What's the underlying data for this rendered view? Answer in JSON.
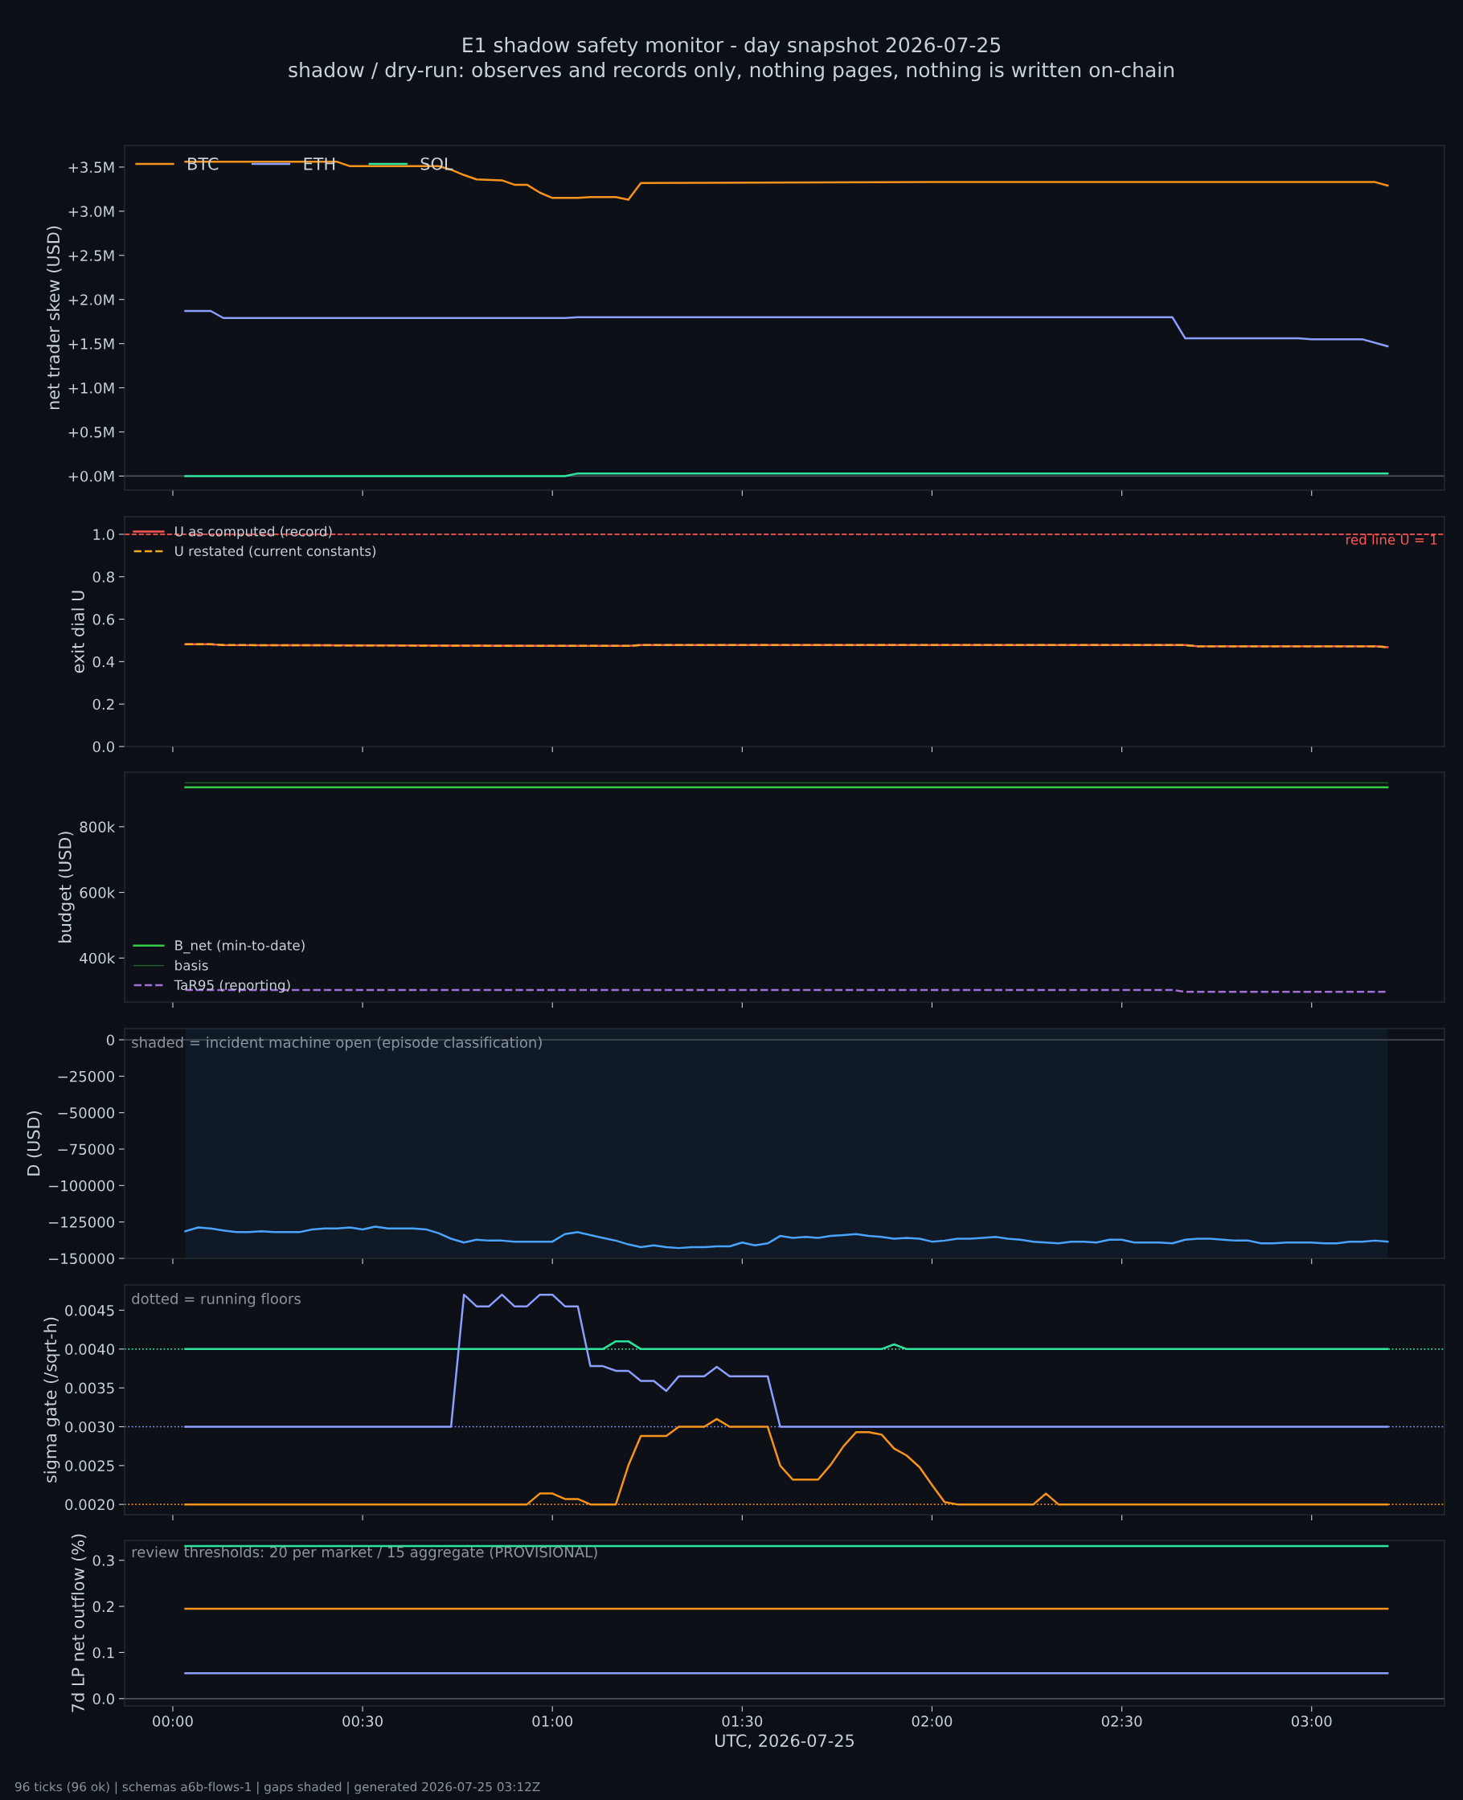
{
  "chart_data": [
    {
      "type": "line",
      "title": "E1 shadow safety monitor - day snapshot 2026-07-25",
      "subtitle": "shadow / dry-run: observes and records only, nothing pages, nothing is written on-chain",
      "ylabel": "net trader skew (USD)",
      "xlim": [
        -0.127,
        3.35
      ],
      "xticks": [
        {
          "value": 0,
          "label": null
        },
        {
          "value": 0.5,
          "label": null
        },
        {
          "value": 1,
          "label": null
        },
        {
          "value": 1.5,
          "label": null
        },
        {
          "value": 2,
          "label": null
        },
        {
          "value": 2.5,
          "label": null
        },
        {
          "value": 3,
          "label": null
        }
      ],
      "ylim": [
        -160000,
        3745000
      ],
      "yticks": [
        {
          "value": 0,
          "label": "+0.0M"
        },
        {
          "value": 500000,
          "label": "+0.5M"
        },
        {
          "value": 1000000,
          "label": "+1.0M"
        },
        {
          "value": 1500000,
          "label": "+1.5M"
        },
        {
          "value": 2000000,
          "label": "+2.0M"
        },
        {
          "value": 2500000,
          "label": "+2.5M"
        },
        {
          "value": 3000000,
          "label": "+3.0M"
        },
        {
          "value": 3500000,
          "label": "+3.5M"
        }
      ],
      "tick_labels": "y",
      "legend": "top left",
      "grid": false,
      "ref_lines": [
        {
          "axis": "y",
          "value": 0,
          "color": "#4a4f57"
        }
      ],
      "series": [
        {
          "name": "BTC",
          "color": "#f7931a",
          "x": [
            0.033,
            0.433,
            0.467,
            0.7,
            0.733,
            0.767,
            0.8,
            0.867,
            0.9,
            0.933,
            0.967,
            1.0,
            1.067,
            1.1,
            1.167,
            1.2,
            1.233,
            2.0,
            3.167,
            3.2
          ],
          "values": [
            3560000,
            3560000,
            3510000,
            3510000,
            3470000,
            3410000,
            3360000,
            3350000,
            3300000,
            3300000,
            3210000,
            3150000,
            3150000,
            3160000,
            3160000,
            3130000,
            3320000,
            3330000,
            3330000,
            3290000
          ]
        },
        {
          "name": "ETH",
          "color": "#8c9eff",
          "x": [
            0.033,
            0.1,
            0.133,
            1.033,
            1.067,
            2.633,
            2.667,
            2.967,
            3.0,
            3.133,
            3.2
          ],
          "values": [
            1870000,
            1870000,
            1790000,
            1790000,
            1800000,
            1800000,
            1560000,
            1560000,
            1550000,
            1550000,
            1470000
          ]
        },
        {
          "name": "SOL",
          "color": "#2ee59d",
          "x": [
            0.033,
            1.033,
            1.067,
            3.2
          ],
          "values": [
            0,
            0,
            30000,
            30000
          ]
        }
      ]
    },
    {
      "type": "line",
      "ylabel": "exit dial U",
      "xlim": [
        -0.127,
        3.35
      ],
      "xticks": [
        {
          "value": 0,
          "label": null
        },
        {
          "value": 0.5,
          "label": null
        },
        {
          "value": 1,
          "label": null
        },
        {
          "value": 1.5,
          "label": null
        },
        {
          "value": 2,
          "label": null
        },
        {
          "value": 2.5,
          "label": null
        },
        {
          "value": 3,
          "label": null
        }
      ],
      "ylim": [
        0,
        1.083
      ],
      "yticks": [
        {
          "value": 0,
          "label": "0.0"
        },
        {
          "value": 0.2,
          "label": "0.2"
        },
        {
          "value": 0.4,
          "label": "0.4"
        },
        {
          "value": 0.6,
          "label": "0.6"
        },
        {
          "value": 0.8,
          "label": "0.8"
        },
        {
          "value": 1.0,
          "label": "1.0"
        }
      ],
      "tick_labels": "y",
      "legend": "top left",
      "grid": false,
      "ref_lines": [
        {
          "axis": "y",
          "value": 1.0,
          "label": "red line U = 1",
          "color": "#ff5555",
          "line_style": "dashed"
        }
      ],
      "series": [
        {
          "name": "U as computed (record)",
          "color": "#ff5555",
          "line_style": "solid",
          "x": [
            0.033,
            0.1,
            0.133,
            1.0,
            1.2,
            1.233,
            2.667,
            2.7,
            3.167,
            3.2
          ],
          "values": [
            0.482,
            0.482,
            0.478,
            0.474,
            0.474,
            0.478,
            0.478,
            0.472,
            0.472,
            0.468
          ]
        },
        {
          "name": "U restated (current constants)",
          "color": "#f5a623",
          "line_style": "dashed",
          "x": [
            0.033,
            0.1,
            0.133,
            1.0,
            1.2,
            1.233,
            2.667,
            2.7,
            3.167,
            3.2
          ],
          "values": [
            0.482,
            0.482,
            0.478,
            0.474,
            0.474,
            0.478,
            0.478,
            0.472,
            0.472,
            0.468
          ]
        }
      ]
    },
    {
      "type": "line",
      "ylabel": "budget (USD)",
      "xlim": [
        -0.127,
        3.35
      ],
      "xticks": [
        {
          "value": 0,
          "label": null
        },
        {
          "value": 0.5,
          "label": null
        },
        {
          "value": 1,
          "label": null
        },
        {
          "value": 1.5,
          "label": null
        },
        {
          "value": 2,
          "label": null
        },
        {
          "value": 2.5,
          "label": null
        },
        {
          "value": 3,
          "label": null
        }
      ],
      "ylim": [
        266000,
        966000
      ],
      "yticks": [
        {
          "value": 400000,
          "label": "400k"
        },
        {
          "value": 600000,
          "label": "600k"
        },
        {
          "value": 800000,
          "label": "800k"
        }
      ],
      "tick_labels": "y",
      "legend": "bottom left",
      "grid": false,
      "series": [
        {
          "name": "B_net (min-to-date)",
          "color": "#33cc44",
          "line_style": "solid",
          "x": [
            0.033,
            3.2
          ],
          "values": [
            920000,
            920000
          ]
        },
        {
          "name": "basis",
          "color": "#1f6b2e",
          "line_style": "solid",
          "x": [
            0.033,
            3.2
          ],
          "values": [
            934000,
            934000
          ]
        },
        {
          "name": "TaR95 (reporting)",
          "color": "#a070d8",
          "line_style": "dashed",
          "x": [
            0.033,
            2.633,
            2.667,
            3.2
          ],
          "values": [
            303000,
            303000,
            297000,
            297000
          ]
        }
      ]
    },
    {
      "type": "line",
      "ylabel": "D (USD)",
      "xlim": [
        -0.127,
        3.35
      ],
      "xticks": [
        {
          "value": 0,
          "label": null
        },
        {
          "value": 0.5,
          "label": null
        },
        {
          "value": 1,
          "label": null
        },
        {
          "value": 1.5,
          "label": null
        },
        {
          "value": 2,
          "label": null
        },
        {
          "value": 2.5,
          "label": null
        },
        {
          "value": 3,
          "label": null
        }
      ],
      "ylim": [
        -150000,
        7700
      ],
      "yticks": [
        {
          "value": -150000,
          "label": "−150000"
        },
        {
          "value": -125000,
          "label": "−125000"
        },
        {
          "value": -100000,
          "label": "−100000"
        },
        {
          "value": -75000,
          "label": "−75000"
        },
        {
          "value": -50000,
          "label": "−50000"
        },
        {
          "value": -25000,
          "label": "−25000"
        },
        {
          "value": 0,
          "label": "0"
        }
      ],
      "tick_labels": "y",
      "grid": false,
      "annotations": [
        "shaded = incident machine open (episode classification)"
      ],
      "ref_lines": [
        {
          "axis": "y",
          "value": 0,
          "color": "#4a4f57"
        }
      ],
      "bands": [
        {
          "axis": "x",
          "from": 0.033,
          "to": 3.2,
          "color": "#0f1a26"
        }
      ],
      "series": [
        {
          "color": "#4aa3ff",
          "x": [
            0.033,
            0.067,
            0.1,
            0.133,
            0.167,
            0.2,
            0.233,
            0.267,
            0.3,
            0.333,
            0.367,
            0.4,
            0.433,
            0.467,
            0.5,
            0.533,
            0.567,
            0.6,
            0.633,
            0.667,
            0.7,
            0.733,
            0.767,
            0.8,
            0.833,
            0.867,
            0.9,
            0.933,
            0.967,
            1.0,
            1.033,
            1.067,
            1.1,
            1.133,
            1.167,
            1.2,
            1.233,
            1.267,
            1.3,
            1.333,
            1.367,
            1.4,
            1.433,
            1.467,
            1.5,
            1.533,
            1.567,
            1.6,
            1.633,
            1.667,
            1.7,
            1.733,
            1.767,
            1.8,
            1.833,
            1.867,
            1.9,
            1.933,
            1.967,
            2.0,
            2.033,
            2.067,
            2.1,
            2.133,
            2.167,
            2.2,
            2.233,
            2.267,
            2.3,
            2.333,
            2.367,
            2.4,
            2.433,
            2.467,
            2.5,
            2.533,
            2.567,
            2.6,
            2.633,
            2.667,
            2.7,
            2.733,
            2.767,
            2.8,
            2.833,
            2.867,
            2.9,
            2.933,
            2.967,
            3.0,
            3.033,
            3.067,
            3.1,
            3.133,
            3.167,
            3.2
          ],
          "values": [
            -131400,
            -128800,
            -129500,
            -130800,
            -132000,
            -132000,
            -131400,
            -132000,
            -132000,
            -132000,
            -130100,
            -129500,
            -129500,
            -128800,
            -130100,
            -128200,
            -129500,
            -129500,
            -129500,
            -130100,
            -132700,
            -136500,
            -139100,
            -137200,
            -137800,
            -137800,
            -138500,
            -138500,
            -138500,
            -138500,
            -133300,
            -132000,
            -134000,
            -135900,
            -137800,
            -140400,
            -142300,
            -141000,
            -142300,
            -142900,
            -142300,
            -142300,
            -141700,
            -141700,
            -139100,
            -141000,
            -139700,
            -134600,
            -135900,
            -135300,
            -135900,
            -134600,
            -134000,
            -133300,
            -134600,
            -135300,
            -136500,
            -135900,
            -136500,
            -138500,
            -137800,
            -136500,
            -136500,
            -135900,
            -135300,
            -136500,
            -137200,
            -138500,
            -139100,
            -139700,
            -138500,
            -138500,
            -139100,
            -137200,
            -137200,
            -139100,
            -139100,
            -139100,
            -139700,
            -137200,
            -136500,
            -136500,
            -137200,
            -137800,
            -137800,
            -139700,
            -139700,
            -139100,
            -139100,
            -139100,
            -139700,
            -139700,
            -138500,
            -138500,
            -137800,
            -138500
          ]
        }
      ]
    },
    {
      "type": "line",
      "ylabel": "sigma gate (/sqrt-h)",
      "xlim": [
        -0.127,
        3.35
      ],
      "xticks": [
        {
          "value": 0,
          "label": null
        },
        {
          "value": 0.5,
          "label": null
        },
        {
          "value": 1,
          "label": null
        },
        {
          "value": 1.5,
          "label": null
        },
        {
          "value": 2,
          "label": null
        },
        {
          "value": 2.5,
          "label": null
        },
        {
          "value": 3,
          "label": null
        }
      ],
      "ylim": [
        0.001867,
        0.004826
      ],
      "yticks": [
        {
          "value": 0.002,
          "label": "0.0020"
        },
        {
          "value": 0.0025,
          "label": "0.0025"
        },
        {
          "value": 0.003,
          "label": "0.0030"
        },
        {
          "value": 0.0035,
          "label": "0.0035"
        },
        {
          "value": 0.004,
          "label": "0.0040"
        },
        {
          "value": 0.0045,
          "label": "0.0045"
        }
      ],
      "tick_labels": "y",
      "grid": false,
      "annotations": [
        "dotted = running floors"
      ],
      "ref_lines": [
        {
          "axis": "y",
          "value": 0.004,
          "color": "#2ee59d",
          "line_style": "dotted"
        },
        {
          "axis": "y",
          "value": 0.003,
          "color": "#8c9eff",
          "line_style": "dotted"
        },
        {
          "axis": "y",
          "value": 0.002,
          "color": "#f7931a",
          "line_style": "dotted"
        }
      ],
      "series": [
        {
          "color": "#2ee59d",
          "x": [
            0.033,
            1.133,
            1.167,
            1.2,
            1.233,
            1.867,
            1.9,
            1.933,
            3.2
          ],
          "values": [
            0.004,
            0.004,
            0.0041,
            0.0041,
            0.004,
            0.004,
            0.00406,
            0.004,
            0.004
          ]
        },
        {
          "color": "#8c9eff",
          "x": [
            0.033,
            0.733,
            0.767,
            0.8,
            0.833,
            0.867,
            0.9,
            0.933,
            0.967,
            1.0,
            1.033,
            1.067,
            1.1,
            1.133,
            1.167,
            1.2,
            1.233,
            1.267,
            1.3,
            1.333,
            1.367,
            1.4,
            1.433,
            1.467,
            1.567,
            1.6,
            3.2
          ],
          "values": [
            0.003,
            0.003,
            0.0047,
            0.00455,
            0.00455,
            0.0047,
            0.00455,
            0.00455,
            0.0047,
            0.0047,
            0.00455,
            0.00455,
            0.00378,
            0.00378,
            0.00372,
            0.00372,
            0.00359,
            0.00359,
            0.00346,
            0.00365,
            0.00365,
            0.00365,
            0.00377,
            0.00365,
            0.00365,
            0.003,
            0.003
          ]
        },
        {
          "color": "#f7931a",
          "x": [
            0.033,
            0.933,
            0.967,
            1.0,
            1.033,
            1.067,
            1.1,
            1.167,
            1.2,
            1.233,
            1.3,
            1.333,
            1.4,
            1.433,
            1.467,
            1.567,
            1.6,
            1.633,
            1.7,
            1.733,
            1.767,
            1.8,
            1.833,
            1.867,
            1.9,
            1.933,
            1.967,
            2.0,
            2.033,
            2.067,
            2.267,
            2.3,
            2.333,
            3.2
          ],
          "values": [
            0.002,
            0.002,
            0.00214,
            0.00214,
            0.00207,
            0.00207,
            0.002,
            0.002,
            0.0025,
            0.00288,
            0.00288,
            0.003,
            0.003,
            0.0031,
            0.003,
            0.003,
            0.0025,
            0.00232,
            0.00232,
            0.00251,
            0.00275,
            0.00293,
            0.00293,
            0.0029,
            0.00272,
            0.00263,
            0.00248,
            0.00225,
            0.00203,
            0.002,
            0.002,
            0.00214,
            0.002,
            0.002
          ]
        }
      ]
    },
    {
      "type": "line",
      "ylabel": "7d LP net outflow (%)",
      "xlabel": "UTC, 2026-07-25",
      "xlim": [
        -0.127,
        3.35
      ],
      "xticks": [
        {
          "value": 0,
          "label": "00:00"
        },
        {
          "value": 0.5,
          "label": "00:30"
        },
        {
          "value": 1,
          "label": "01:00"
        },
        {
          "value": 1.5,
          "label": "01:30"
        },
        {
          "value": 2,
          "label": "02:00"
        },
        {
          "value": 2.5,
          "label": "02:30"
        },
        {
          "value": 3,
          "label": "03:00"
        }
      ],
      "ylim": [
        -0.016,
        0.343
      ],
      "yticks": [
        {
          "value": 0,
          "label": "0.0"
        },
        {
          "value": 0.1,
          "label": "0.1"
        },
        {
          "value": 0.2,
          "label": "0.2"
        },
        {
          "value": 0.3,
          "label": "0.3"
        }
      ],
      "grid": false,
      "annotations": [
        "review thresholds: 20 per market / 15 aggregate (PROVISIONAL)",
        "96 ticks (96 ok) | schemas a6b-flows-1 | gaps shaded | generated 2026-07-25 03:12Z"
      ],
      "ref_lines": [
        {
          "axis": "y",
          "value": 0,
          "color": "#4a4f57"
        }
      ],
      "series": [
        {
          "color": "#2ee59d",
          "x": [
            0.033,
            3.2
          ],
          "values": [
            0.331,
            0.331
          ]
        },
        {
          "color": "#f7931a",
          "x": [
            0.033,
            3.2
          ],
          "values": [
            0.195,
            0.195
          ]
        },
        {
          "color": "#8c9eff",
          "x": [
            0.033,
            3.2
          ],
          "values": [
            0.055,
            0.055
          ]
        }
      ]
    }
  ]
}
